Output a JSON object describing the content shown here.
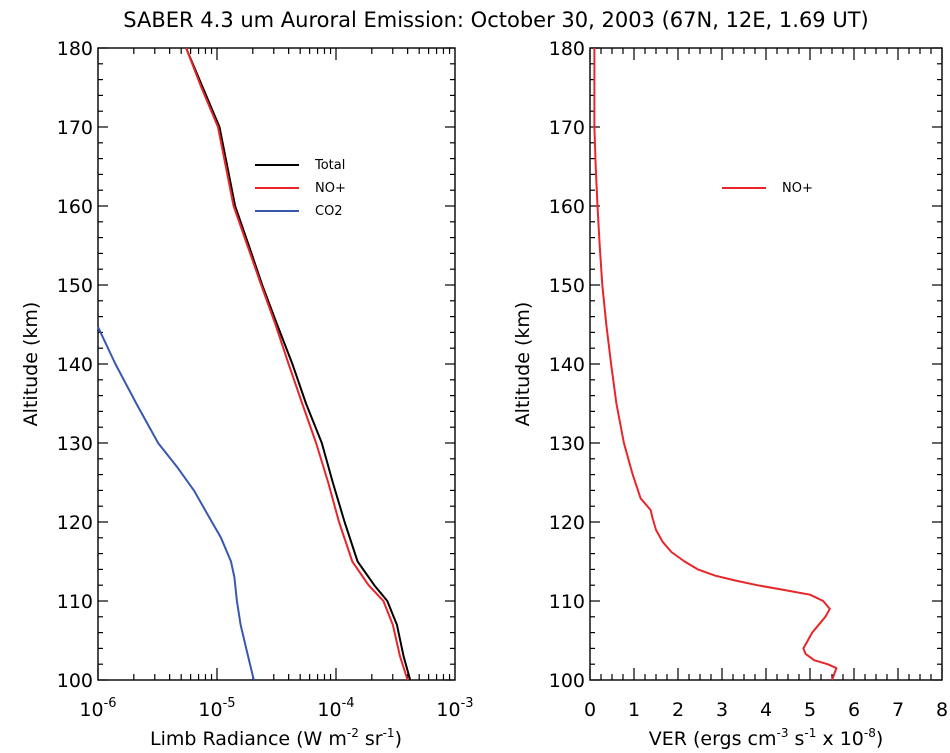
{
  "title": "SABER 4.3 um Auroral Emission: October 30, 2003 (67N, 12E, 1.69 UT)",
  "chart_data": [
    {
      "type": "line",
      "title": "",
      "xlabel": "Limb Radiance (W m^-2 sr^-1)",
      "xlabel_parts": [
        "Limb Radiance (W m",
        "-2",
        " sr",
        "-1",
        ")"
      ],
      "ylabel": "Altitude (km)",
      "xscale": "log",
      "xlim": [
        1e-06,
        0.001
      ],
      "ylim": [
        100,
        180
      ],
      "x_ticks": [
        {
          "base": "10",
          "exp": "-6"
        },
        {
          "base": "10",
          "exp": "-5"
        },
        {
          "base": "10",
          "exp": "-4"
        },
        {
          "base": "10",
          "exp": "-3"
        }
      ],
      "y_ticks": [
        "100",
        "110",
        "120",
        "130",
        "140",
        "150",
        "160",
        "170",
        "180"
      ],
      "legend_position": "upper-right",
      "series": [
        {
          "name": "Total",
          "color": "#000000",
          "points": [
            [
              5.5e-06,
              180
            ],
            [
              7.6e-06,
              175
            ],
            [
              1.05e-05,
              170
            ],
            [
              1.42e-05,
              160
            ],
            [
              1.85e-05,
              155
            ],
            [
              2.4e-05,
              150
            ],
            [
              3.2e-05,
              145
            ],
            [
              4.3e-05,
              140
            ],
            [
              5.6e-05,
              135
            ],
            [
              7.6e-05,
              130
            ],
            [
              9.4e-05,
              125
            ],
            [
              0.000118,
              120
            ],
            [
              0.000152,
              115
            ],
            [
              0.00021,
              112
            ],
            [
              0.00027,
              110
            ],
            [
              0.000325,
              107
            ],
            [
              0.00037,
              103
            ],
            [
              0.00042,
              100
            ]
          ]
        },
        {
          "name": "NO+",
          "color": "#e8262a",
          "points": [
            [
              5.5e-06,
              180
            ],
            [
              7.4e-06,
              175
            ],
            [
              1.02e-05,
              170
            ],
            [
              1.38e-05,
              160
            ],
            [
              1.8e-05,
              155
            ],
            [
              2.35e-05,
              150
            ],
            [
              3.1e-05,
              145
            ],
            [
              4e-05,
              140
            ],
            [
              5.2e-05,
              135
            ],
            [
              6.8e-05,
              130
            ],
            [
              8.6e-05,
              125
            ],
            [
              0.000106,
              120
            ],
            [
              0.000137,
              115
            ],
            [
              0.000188,
              112
            ],
            [
              0.00025,
              110
            ],
            [
              0.0003,
              107
            ],
            [
              0.000345,
              103
            ],
            [
              0.0004,
              100
            ]
          ]
        },
        {
          "name": "CO2",
          "color": "#3858b0",
          "points": [
            [
              1e-06,
              144.7
            ],
            [
              1.4e-06,
              140
            ],
            [
              2.1e-06,
              135
            ],
            [
              3.2e-06,
              130
            ],
            [
              4.6e-06,
              127
            ],
            [
              6.4e-06,
              124
            ],
            [
              8.3e-06,
              121
            ],
            [
              1.08e-05,
              118
            ],
            [
              1.31e-05,
              115
            ],
            [
              1.4e-05,
              113
            ],
            [
              1.47e-05,
              110
            ],
            [
              1.58e-05,
              107
            ],
            [
              1.76e-05,
              104
            ],
            [
              2.04e-05,
              100
            ]
          ]
        }
      ]
    },
    {
      "type": "line",
      "title": "",
      "xlabel": "VER (ergs cm^-3 s^-1 x 10^-8)",
      "xlabel_parts": [
        "VER (ergs cm",
        "-3",
        " s",
        "-1",
        " x 10",
        "-8",
        ")"
      ],
      "ylabel": "Altitude (km)",
      "xscale": "linear",
      "xlim": [
        0,
        8
      ],
      "ylim": [
        100,
        180
      ],
      "x_ticks": [
        "0",
        "1",
        "2",
        "3",
        "4",
        "5",
        "6",
        "7",
        "8"
      ],
      "y_ticks": [
        "100",
        "110",
        "120",
        "130",
        "140",
        "150",
        "160",
        "170",
        "180"
      ],
      "legend_position": "upper-right",
      "series": [
        {
          "name": "NO+",
          "color": "#e8262a",
          "points": [
            [
              0.1,
              180
            ],
            [
              0.1,
              170
            ],
            [
              0.13,
              165
            ],
            [
              0.17,
              160
            ],
            [
              0.22,
              155
            ],
            [
              0.28,
              150
            ],
            [
              0.37,
              145
            ],
            [
              0.48,
              140
            ],
            [
              0.6,
              135
            ],
            [
              0.77,
              130
            ],
            [
              0.97,
              126
            ],
            [
              1.15,
              123
            ],
            [
              1.38,
              121.5
            ],
            [
              1.42,
              120.5
            ],
            [
              1.5,
              119
            ],
            [
              1.65,
              117.5
            ],
            [
              1.85,
              116.2
            ],
            [
              2.15,
              115
            ],
            [
              2.45,
              114
            ],
            [
              2.85,
              113.2
            ],
            [
              3.3,
              112.6
            ],
            [
              3.8,
              112
            ],
            [
              4.4,
              111.4
            ],
            [
              5.0,
              110.8
            ],
            [
              5.3,
              110
            ],
            [
              5.45,
              109
            ],
            [
              5.35,
              108
            ],
            [
              5.2,
              107
            ],
            [
              5.05,
              106
            ],
            [
              4.95,
              105
            ],
            [
              4.85,
              104
            ],
            [
              4.9,
              103.3
            ],
            [
              5.1,
              102.5
            ],
            [
              5.4,
              102
            ],
            [
              5.6,
              101.5
            ],
            [
              5.5,
              100
            ]
          ]
        }
      ]
    }
  ]
}
